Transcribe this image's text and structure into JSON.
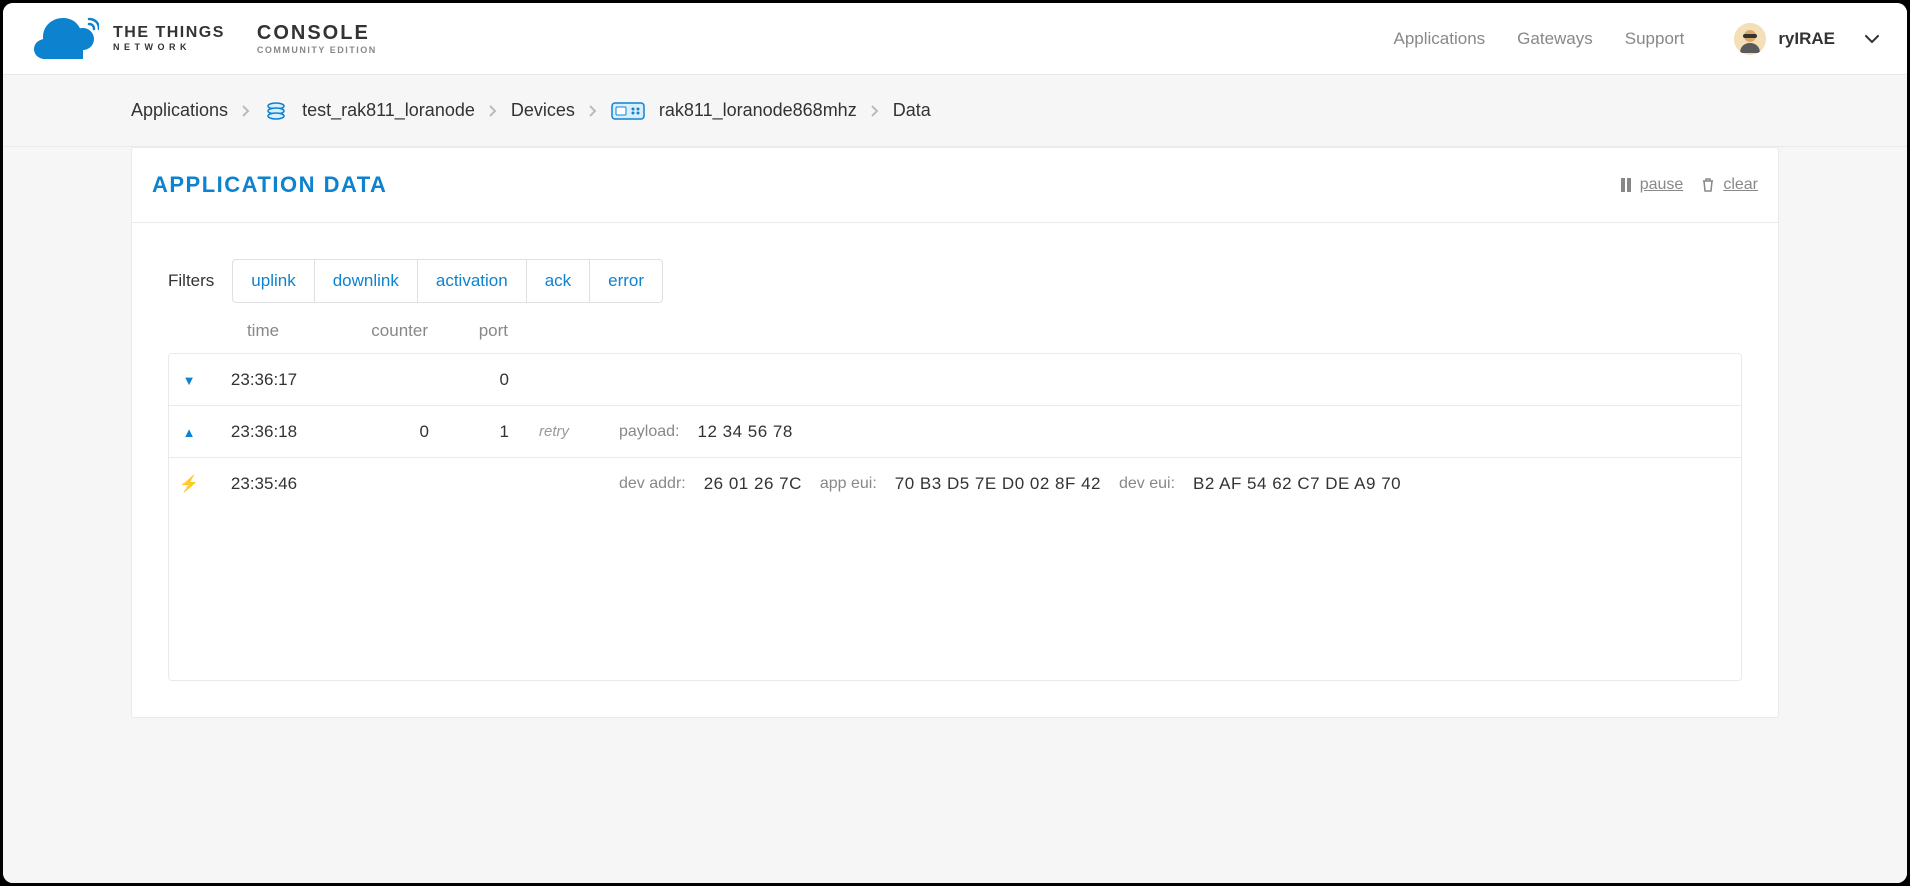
{
  "colors": {
    "brand_blue": "#0d83d0",
    "text_gray": "#888888",
    "border": "#eaeaea",
    "bg_light": "#f6f6f6",
    "bolt": "#f5a623"
  },
  "logo": {
    "line1": "THE THINGS",
    "line2": "NETWORK",
    "console_line1": "CONSOLE",
    "console_line2": "COMMUNITY EDITION"
  },
  "nav": {
    "applications": "Applications",
    "gateways": "Gateways",
    "support": "Support"
  },
  "user": {
    "name": "ryIRAE"
  },
  "breadcrumb": {
    "applications": "Applications",
    "app_id": "test_rak811_loranode",
    "devices": "Devices",
    "device_id": "rak811_loranode868mhz",
    "data": "Data"
  },
  "panel": {
    "title": "APPLICATION DATA",
    "pause": "pause",
    "clear": "clear"
  },
  "filters": {
    "label": "Filters",
    "uplink": "uplink",
    "downlink": "downlink",
    "activation": "activation",
    "ack": "ack",
    "error": "error"
  },
  "columns": {
    "time": "time",
    "counter": "counter",
    "port": "port"
  },
  "rows": [
    {
      "type": "downlink",
      "time": "23:36:17",
      "counter": "",
      "port": "0",
      "retry": "",
      "extra": []
    },
    {
      "type": "uplink",
      "time": "23:36:18",
      "counter": "0",
      "port": "1",
      "retry": "retry",
      "extra": [
        {
          "label": "payload:",
          "value": "12 34 56 78"
        }
      ]
    },
    {
      "type": "activation",
      "time": "23:35:46",
      "counter": "",
      "port": "",
      "retry": "",
      "extra": [
        {
          "label": "dev addr:",
          "value": "26 01 26 7C"
        },
        {
          "label": "app eui:",
          "value": "70 B3 D5 7E D0 02 8F 42"
        },
        {
          "label": "dev eui:",
          "value": "B2 AF 54 62 C7 DE A9 70"
        }
      ]
    }
  ]
}
